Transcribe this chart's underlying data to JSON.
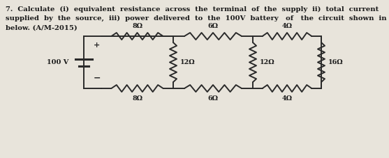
{
  "title_text": "7.  Calculate  (i)  equivalent  resistance  across  the  terminal  of  the  supply  ii)  total  current\nsupplied  by  the  source,  iii)  power  delivered  to  the  100V  battery   of   the  circuit  shown  in\nbelow. (A/M-2015)",
  "bg_color": "#e8e4db",
  "text_color": "#1a1a1a",
  "wire_color": "#2a2a2a",
  "circuit": {
    "top_resistors": [
      "8Ω",
      "6Ω",
      "4Ω"
    ],
    "bottom_resistors": [
      "8Ω",
      "6Ω",
      "4Ω"
    ],
    "vertical_resistors": [
      "12Ω",
      "12Ω",
      "16Ω"
    ],
    "source_label": "100 V"
  },
  "title_fontsize": 7.2,
  "label_fontsize": 6.8,
  "lw": 1.4
}
